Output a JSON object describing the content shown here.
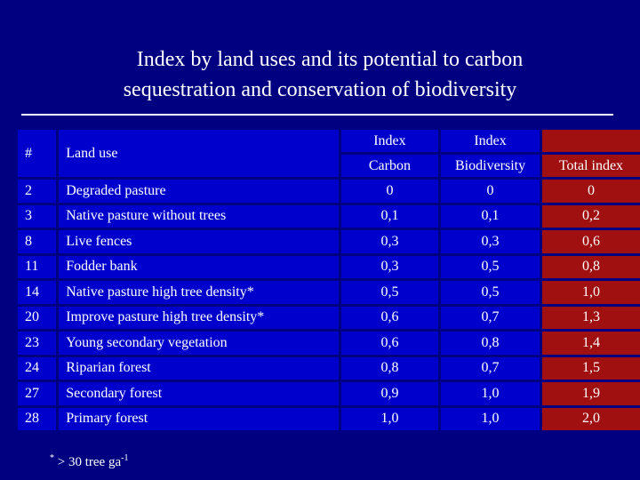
{
  "title": {
    "line1": "Index by land uses and its potential to carbon",
    "line2": "sequestration and conservation of biodiversity"
  },
  "table": {
    "headers": {
      "num": "#",
      "land_use": "Land use",
      "carbon_top": "Index",
      "carbon_bottom": "Carbon",
      "bio_top": "Index",
      "bio_bottom": "Biodiversity",
      "total": "Total index"
    },
    "rows": [
      {
        "num": "2",
        "land_use": "Degraded pasture",
        "carbon": "0",
        "biodiversity": "0",
        "total": "0"
      },
      {
        "num": "3",
        "land_use": "Native pasture without trees",
        "carbon": "0,1",
        "biodiversity": "0,1",
        "total": "0,2"
      },
      {
        "num": "8",
        "land_use": "Live fences",
        "carbon": "0,3",
        "biodiversity": "0,3",
        "total": "0,6"
      },
      {
        "num": "11",
        "land_use": "Fodder bank",
        "carbon": "0,3",
        "biodiversity": "0,5",
        "total": "0,8"
      },
      {
        "num": "14",
        "land_use": "Native pasture high tree density*",
        "carbon": "0,5",
        "biodiversity": "0,5",
        "total": "1,0"
      },
      {
        "num": "20",
        "land_use": "Improve pasture high tree density*",
        "carbon": "0,6",
        "biodiversity": "0,7",
        "total": "1,3"
      },
      {
        "num": "23",
        "land_use": "Young secondary vegetation",
        "carbon": "0,6",
        "biodiversity": "0,8",
        "total": "1,4"
      },
      {
        "num": "24",
        "land_use": "Riparian forest",
        "carbon": "0,8",
        "biodiversity": "0,7",
        "total": "1,5"
      },
      {
        "num": "27",
        "land_use": "Secondary forest",
        "carbon": "0,9",
        "biodiversity": "1,0",
        "total": "1,9"
      },
      {
        "num": "28",
        "land_use": "Primary forest",
        "carbon": "1,0",
        "biodiversity": "1,0",
        "total": "2,0"
      }
    ]
  },
  "footnote": {
    "star": "*",
    "text": " > 30 tree ga",
    "exponent": "-1"
  },
  "colors": {
    "background": "#000080",
    "cell": "#0000cc",
    "total_column": "#a01010"
  }
}
